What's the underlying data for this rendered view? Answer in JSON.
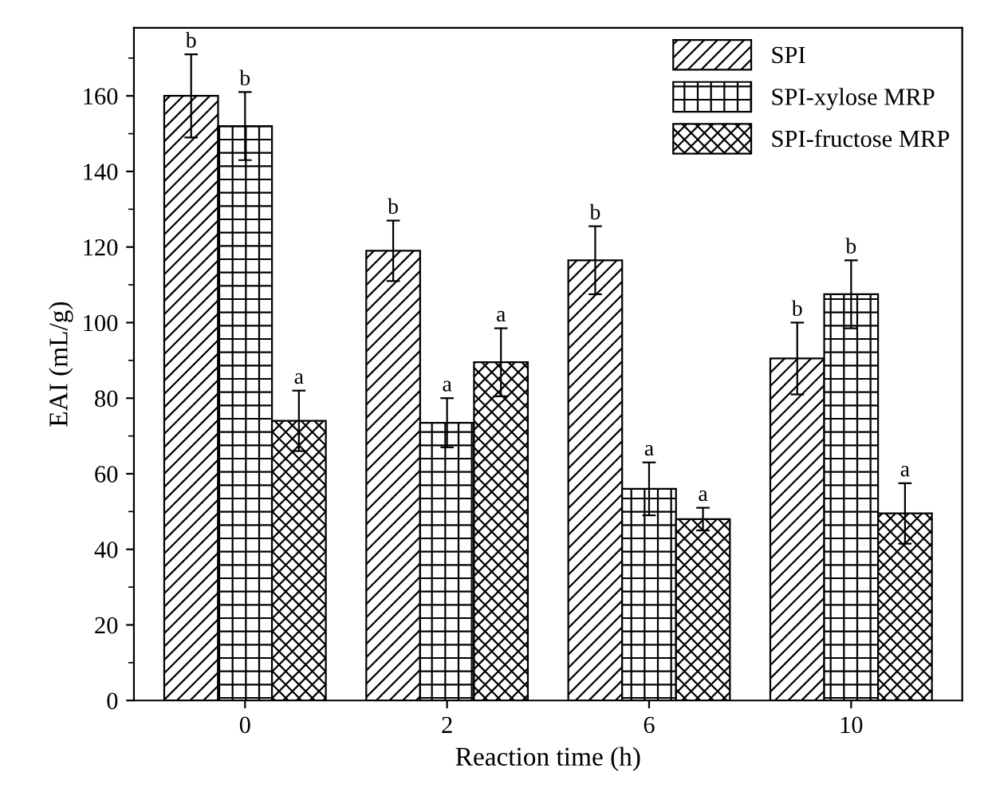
{
  "chart_data": {
    "type": "bar",
    "xlabel": "Reaction time (h)",
    "ylabel": "EAI (mL/g)",
    "categories": [
      "0",
      "2",
      "6",
      "10"
    ],
    "series": [
      {
        "name": "SPI",
        "color": "#000000",
        "values": [
          160,
          119,
          116.5,
          90.5
        ],
        "errors": [
          11,
          8,
          9,
          9.5
        ]
      },
      {
        "name": "SPI-xylose MRP",
        "color": "#000000",
        "values": [
          152,
          73.5,
          56,
          107.5
        ],
        "errors": [
          9,
          6.5,
          7,
          9
        ]
      },
      {
        "name": "SPI-fructose MRP",
        "color": "#000000",
        "values": [
          74,
          89.5,
          48,
          49.5
        ],
        "errors": [
          8,
          9,
          3,
          8
        ]
      }
    ],
    "ylim": [
      0,
      178
    ],
    "yticks": [
      0,
      20,
      40,
      60,
      80,
      100,
      120,
      140,
      160
    ],
    "grid": false,
    "legend": "top right",
    "annotations": [
      "b",
      "b",
      "a",
      "b",
      "a",
      "a",
      "b",
      "a",
      "a",
      "b",
      "b",
      "a"
    ]
  }
}
